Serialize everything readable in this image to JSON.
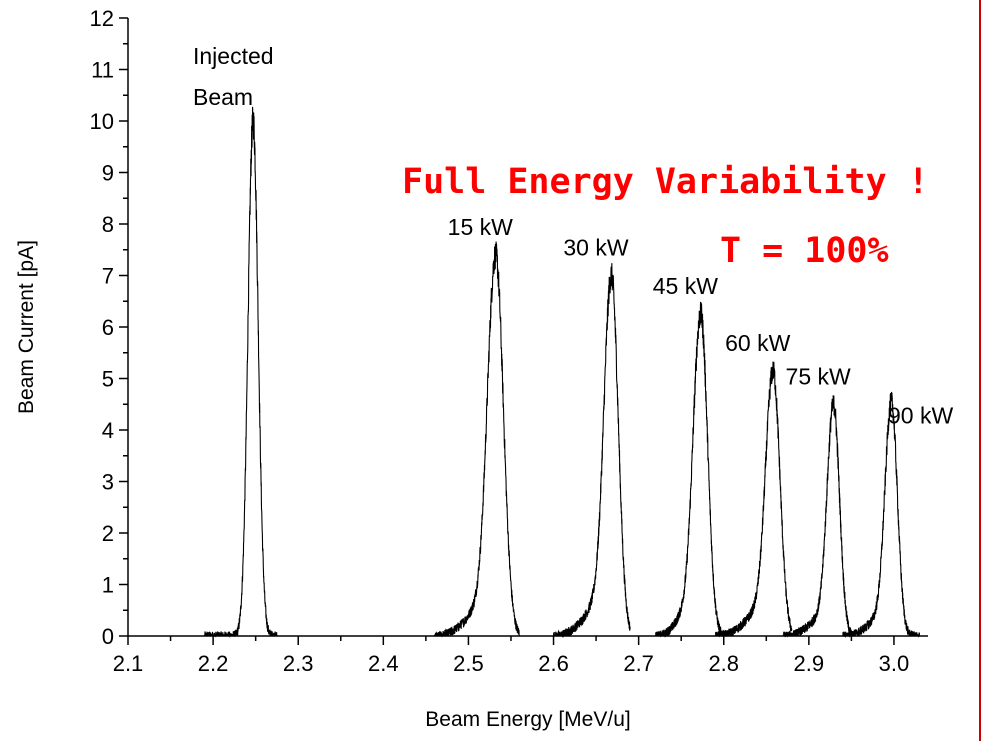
{
  "chart_data": {
    "type": "line",
    "xlabel": "Beam Energy [MeV/u]",
    "ylabel": "Beam Current [pA]",
    "xlim": [
      2.1,
      3.04
    ],
    "ylim": [
      0,
      12
    ],
    "x_ticks": [
      "2.1",
      "2.2",
      "2.3",
      "2.4",
      "2.5",
      "2.6",
      "2.7",
      "2.8",
      "2.9",
      "3.0"
    ],
    "y_ticks": [
      "0",
      "1",
      "2",
      "3",
      "4",
      "5",
      "6",
      "7",
      "8",
      "9",
      "10",
      "11",
      "12"
    ],
    "grid": false,
    "legend": "none",
    "line_color": "#000000",
    "series": [
      {
        "center": 2.247,
        "peak": 10.0,
        "width": 0.006,
        "shoulder": 0.0,
        "start": 2.19,
        "end": 2.275,
        "label": ""
      },
      {
        "center": 2.532,
        "peak": 7.4,
        "width": 0.009,
        "shoulder": 1.4,
        "start": 2.46,
        "end": 2.56,
        "label": "15 kW"
      },
      {
        "center": 2.668,
        "peak": 7.0,
        "width": 0.008,
        "shoulder": 1.5,
        "start": 2.6,
        "end": 2.69,
        "label": "30 kW"
      },
      {
        "center": 2.773,
        "peak": 6.25,
        "width": 0.008,
        "shoulder": 1.6,
        "start": 2.72,
        "end": 2.8,
        "label": "45 kW"
      },
      {
        "center": 2.858,
        "peak": 5.15,
        "width": 0.008,
        "shoulder": 1.2,
        "start": 2.79,
        "end": 2.88,
        "label": "60 kW"
      },
      {
        "center": 2.929,
        "peak": 4.5,
        "width": 0.007,
        "shoulder": 0.9,
        "start": 2.87,
        "end": 2.95,
        "label": "75 kW"
      },
      {
        "center": 2.997,
        "peak": 4.55,
        "width": 0.007,
        "shoulder": 0.9,
        "start": 2.94,
        "end": 3.03,
        "label": "90 kW"
      }
    ],
    "annotations": {
      "injected_line1": "Injected",
      "injected_line2": "Beam",
      "headline": "Full Energy Variability !",
      "transmission": "T = 100%"
    },
    "headline_color": "#ff0000",
    "right_border_color": "#cc0000"
  }
}
